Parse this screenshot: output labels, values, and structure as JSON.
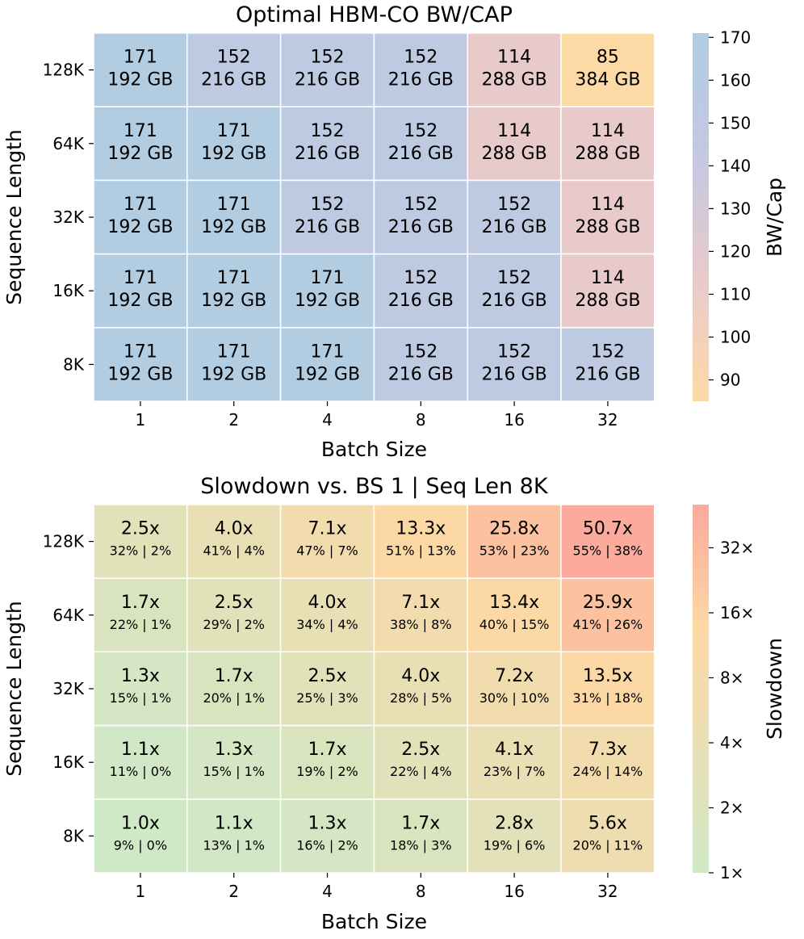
{
  "chart_data": [
    {
      "type": "heatmap",
      "title": "Optimal HBM-CO BW/CAP",
      "xlabel": "Batch Size",
      "ylabel": "Sequence Length",
      "x_categories": [
        "1",
        "2",
        "4",
        "8",
        "16",
        "32"
      ],
      "y_categories": [
        "128K",
        "64K",
        "32K",
        "16K",
        "8K"
      ],
      "values": [
        [
          171,
          152,
          152,
          152,
          114,
          85
        ],
        [
          171,
          171,
          152,
          152,
          114,
          114
        ],
        [
          171,
          171,
          152,
          152,
          152,
          114
        ],
        [
          171,
          171,
          171,
          152,
          152,
          114
        ],
        [
          171,
          171,
          171,
          152,
          152,
          152
        ]
      ],
      "secondary_labels": [
        [
          "192 GB",
          "216 GB",
          "216 GB",
          "216 GB",
          "288 GB",
          "384 GB"
        ],
        [
          "192 GB",
          "192 GB",
          "216 GB",
          "216 GB",
          "288 GB",
          "288 GB"
        ],
        [
          "192 GB",
          "192 GB",
          "216 GB",
          "216 GB",
          "216 GB",
          "288 GB"
        ],
        [
          "192 GB",
          "192 GB",
          "192 GB",
          "216 GB",
          "216 GB",
          "288 GB"
        ],
        [
          "192 GB",
          "192 GB",
          "192 GB",
          "216 GB",
          "216 GB",
          "216 GB"
        ]
      ],
      "colorbar": {
        "label": "BW/Cap",
        "range": [
          85,
          171
        ],
        "ticks": [
          90,
          100,
          110,
          120,
          130,
          140,
          150,
          160,
          170
        ],
        "tick_labels": [
          "90",
          "100",
          "110",
          "120",
          "130",
          "140",
          "150",
          "160",
          "170"
        ],
        "colors": [
          "#fdd9a5",
          "#e8cacb",
          "#c4c8e1",
          "#b2cde1"
        ]
      }
    },
    {
      "type": "heatmap",
      "title": "Slowdown vs. BS 1 | Seq Len 8K",
      "xlabel": "Batch Size",
      "ylabel": "Sequence Length",
      "x_categories": [
        "1",
        "2",
        "4",
        "8",
        "16",
        "32"
      ],
      "y_categories": [
        "128K",
        "64K",
        "32K",
        "16K",
        "8K"
      ],
      "values": [
        [
          2.5,
          4.0,
          7.1,
          13.3,
          25.8,
          50.7
        ],
        [
          1.7,
          2.5,
          4.0,
          7.1,
          13.4,
          25.9
        ],
        [
          1.3,
          1.7,
          2.5,
          4.0,
          7.2,
          13.5
        ],
        [
          1.1,
          1.3,
          1.7,
          2.5,
          4.1,
          7.3
        ],
        [
          1.0,
          1.1,
          1.3,
          1.7,
          2.8,
          5.6
        ]
      ],
      "cell_labels": [
        [
          "2.5x",
          "4.0x",
          "7.1x",
          "13.3x",
          "25.8x",
          "50.7x"
        ],
        [
          "1.7x",
          "2.5x",
          "4.0x",
          "7.1x",
          "13.4x",
          "25.9x"
        ],
        [
          "1.3x",
          "1.7x",
          "2.5x",
          "4.0x",
          "7.2x",
          "13.5x"
        ],
        [
          "1.1x",
          "1.3x",
          "1.7x",
          "2.5x",
          "4.1x",
          "7.3x"
        ],
        [
          "1.0x",
          "1.1x",
          "1.3x",
          "1.7x",
          "2.8x",
          "5.6x"
        ]
      ],
      "secondary_labels": [
        [
          "32% | 2%",
          "41% | 4%",
          "47% | 7%",
          "51% | 13%",
          "53% | 23%",
          "55% | 38%"
        ],
        [
          "22% | 1%",
          "29% | 2%",
          "34% | 4%",
          "38% | 8%",
          "40% | 15%",
          "41% | 26%"
        ],
        [
          "15% | 1%",
          "20% | 1%",
          "25% | 3%",
          "28% | 5%",
          "30% | 10%",
          "31% | 18%"
        ],
        [
          "11% | 0%",
          "15% | 1%",
          "19% | 2%",
          "22% | 4%",
          "23% | 7%",
          "24% | 14%"
        ],
        [
          "9% | 0%",
          "13% | 1%",
          "16% | 2%",
          "18% | 3%",
          "19% | 6%",
          "20% | 11%"
        ]
      ],
      "colorbar": {
        "label": "Slowdown",
        "scale": "log2",
        "range": [
          1,
          50.7
        ],
        "ticks": [
          1,
          2,
          4,
          8,
          16,
          32
        ],
        "tick_labels": [
          "1×",
          "2×",
          "4×",
          "8×",
          "16×",
          "32×"
        ],
        "colors": [
          "#cfe8c6",
          "#e8dfb5",
          "#fcd8a4",
          "#fbaa9c"
        ]
      }
    }
  ]
}
